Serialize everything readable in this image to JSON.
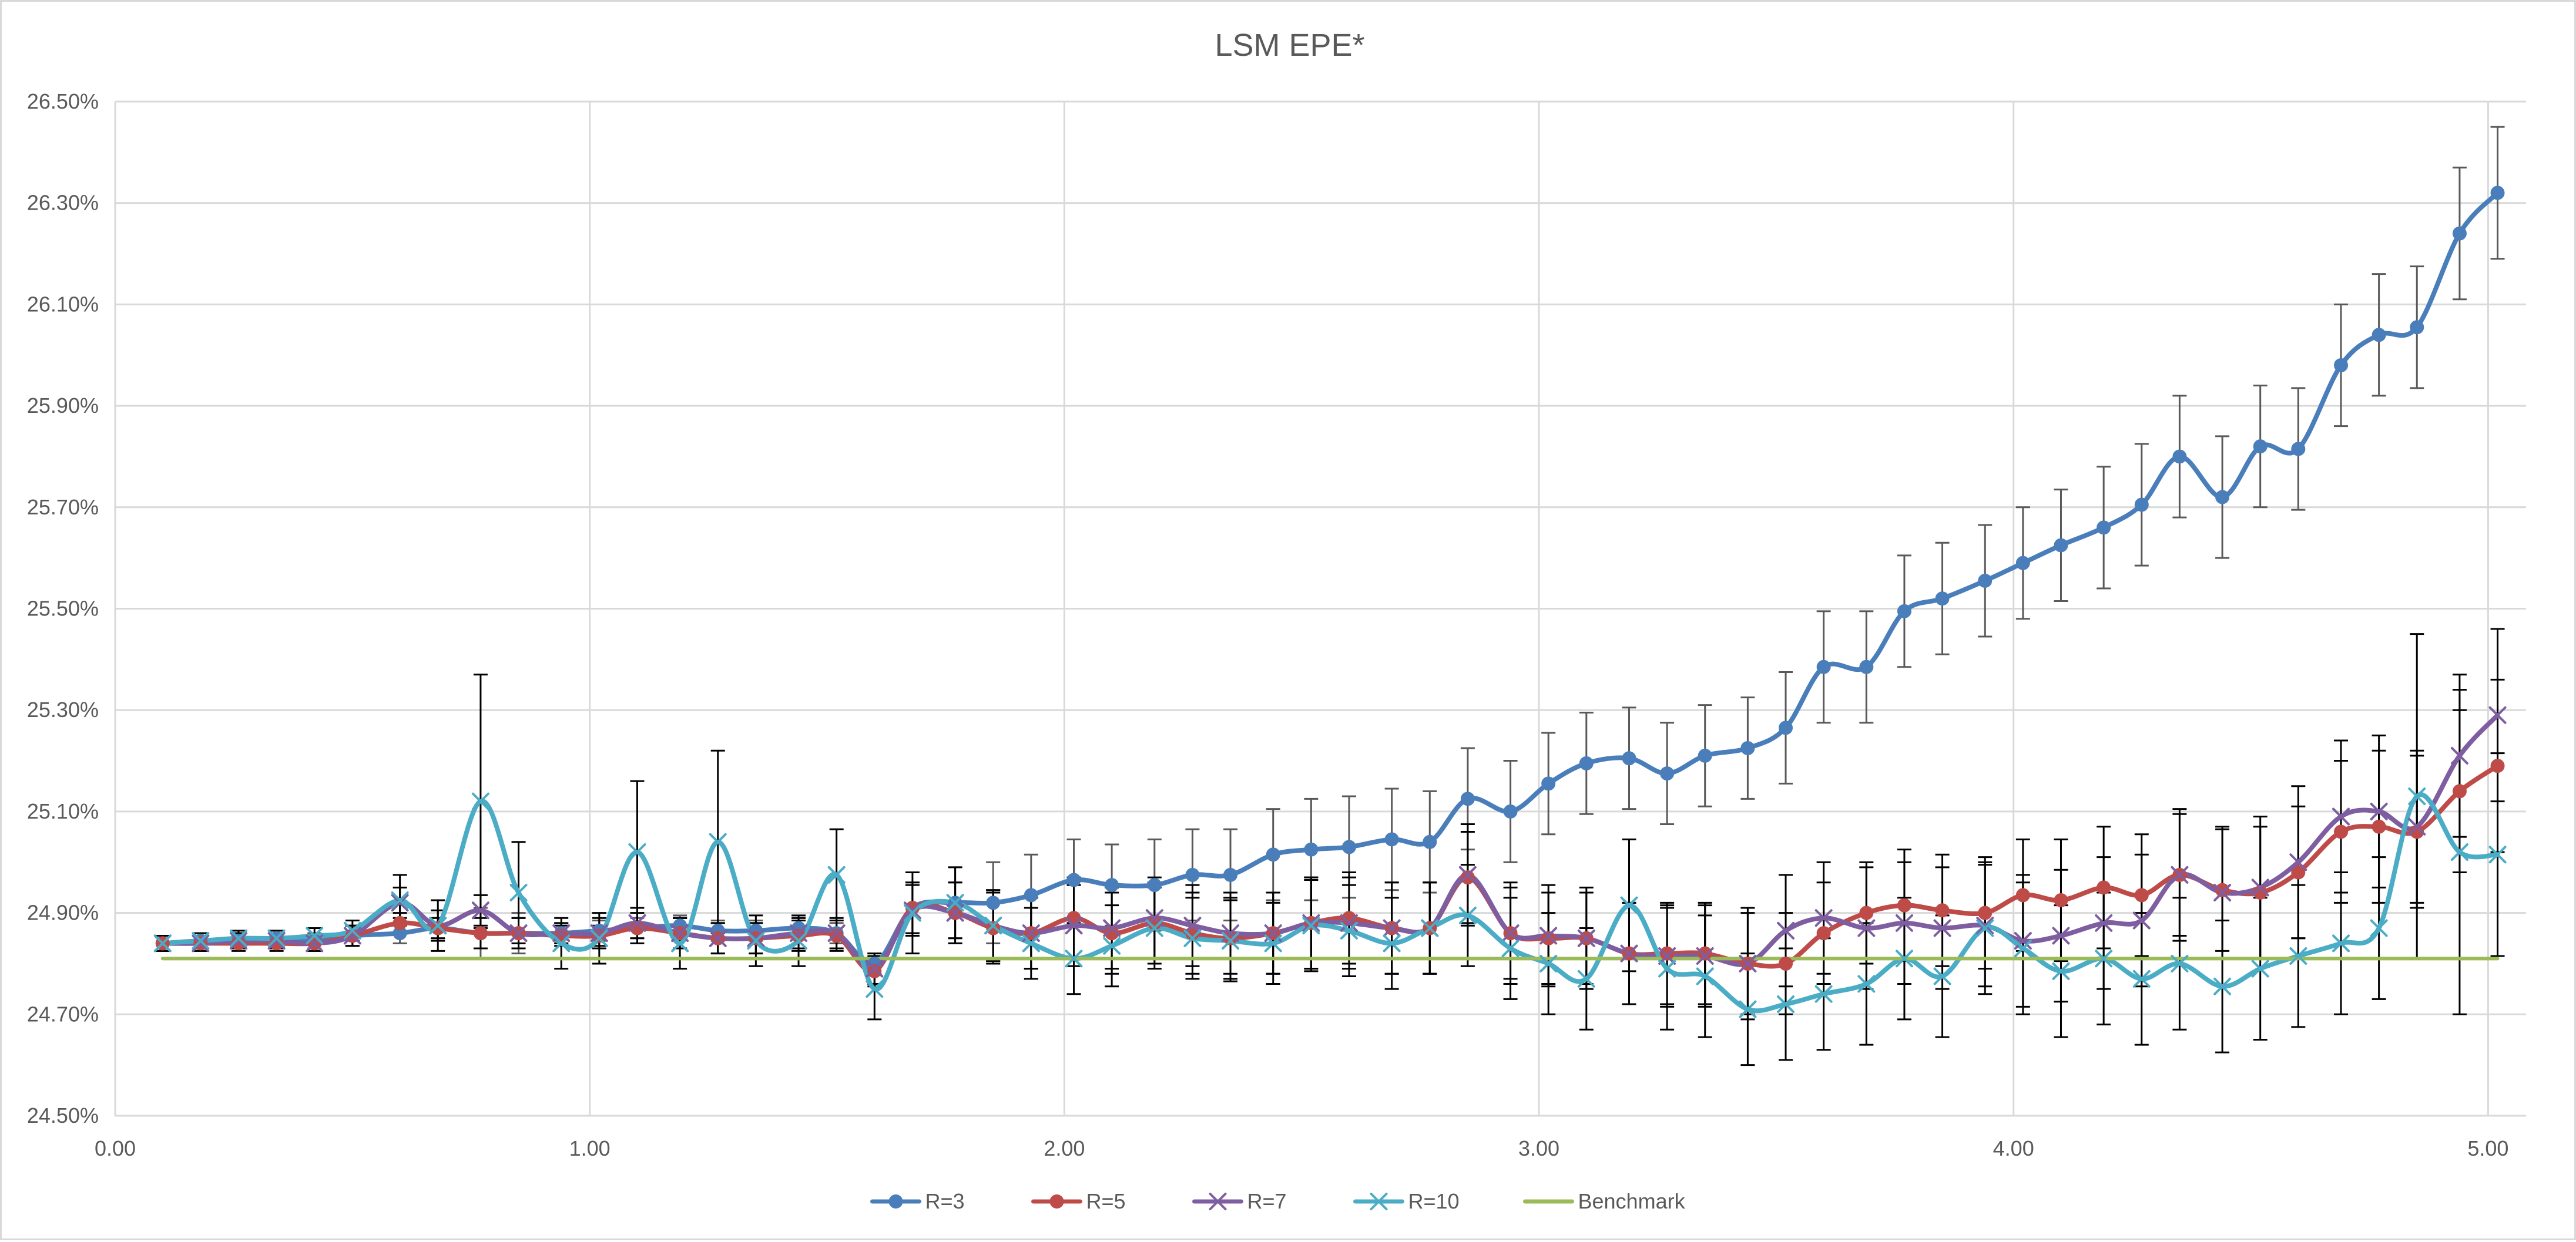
{
  "chart_data": {
    "type": "line",
    "title": "LSM EPE*",
    "xlabel": "",
    "ylabel": "",
    "x_ticks": [
      "0.00",
      "1.00",
      "2.00",
      "3.00",
      "4.00",
      "5.00"
    ],
    "y_ticks": [
      "24.50%",
      "24.70%",
      "24.90%",
      "25.10%",
      "25.30%",
      "25.50%",
      "25.70%",
      "25.90%",
      "26.10%",
      "26.30%",
      "26.50%"
    ],
    "xlim": [
      0,
      5.08
    ],
    "ylim": [
      24.5,
      26.5
    ],
    "grid": true,
    "legend_position": "bottom",
    "smooth_lines": true,
    "x": [
      0.1,
      0.18,
      0.26,
      0.34,
      0.42,
      0.5,
      0.6,
      0.68,
      0.77,
      0.85,
      0.94,
      1.02,
      1.1,
      1.19,
      1.27,
      1.35,
      1.44,
      1.52,
      1.6,
      1.68,
      1.77,
      1.85,
      1.93,
      2.02,
      2.1,
      2.19,
      2.27,
      2.35,
      2.44,
      2.52,
      2.6,
      2.69,
      2.77,
      2.85,
      2.94,
      3.02,
      3.1,
      3.19,
      3.27,
      3.35,
      3.44,
      3.52,
      3.6,
      3.69,
      3.77,
      3.85,
      3.94,
      4.02,
      4.1,
      4.19,
      4.27,
      4.35,
      4.44,
      4.52,
      4.6,
      4.69,
      4.77,
      4.85,
      4.94,
      5.02
    ],
    "series": [
      {
        "name": "R=3",
        "color": "#4a7ebb",
        "marker": "circle",
        "values": [
          24.84,
          24.845,
          24.845,
          24.85,
          24.845,
          24.855,
          24.86,
          24.87,
          24.86,
          24.86,
          24.86,
          24.865,
          24.87,
          24.875,
          24.865,
          24.865,
          24.87,
          24.86,
          24.8,
          24.91,
          24.92,
          24.92,
          24.935,
          24.965,
          24.955,
          24.955,
          24.975,
          24.975,
          25.015,
          25.025,
          25.03,
          25.045,
          25.04,
          25.125,
          25.1,
          25.155,
          25.195,
          25.205,
          25.175,
          25.21,
          25.225,
          25.265,
          25.385,
          25.385,
          25.495,
          25.52,
          25.555,
          25.59,
          25.625,
          25.66,
          25.705,
          25.8,
          25.72,
          25.82,
          25.815,
          25.98,
          26.04,
          26.055,
          26.24,
          26.32
        ],
        "error": [
          0.015,
          0.015,
          0.015,
          0.015,
          0.015,
          0.02,
          0.02,
          0.02,
          0.05,
          0.04,
          0.02,
          0.02,
          0.02,
          0.02,
          0.02,
          0.02,
          0.02,
          0.02,
          0.02,
          0.05,
          0.07,
          0.08,
          0.08,
          0.08,
          0.08,
          0.09,
          0.09,
          0.09,
          0.09,
          0.1,
          0.1,
          0.1,
          0.1,
          0.1,
          0.1,
          0.1,
          0.1,
          0.1,
          0.1,
          0.1,
          0.1,
          0.11,
          0.11,
          0.11,
          0.11,
          0.11,
          0.11,
          0.11,
          0.11,
          0.12,
          0.12,
          0.12,
          0.12,
          0.12,
          0.12,
          0.12,
          0.12,
          0.12,
          0.13,
          0.13
        ]
      },
      {
        "name": "R=5",
        "color": "#be4b48",
        "marker": "circle",
        "values": [
          24.84,
          24.84,
          24.84,
          24.84,
          24.84,
          24.855,
          24.88,
          24.87,
          24.86,
          24.86,
          24.855,
          24.855,
          24.87,
          24.86,
          24.85,
          24.85,
          24.855,
          24.855,
          24.785,
          24.91,
          24.9,
          24.87,
          24.86,
          24.89,
          24.86,
          24.88,
          24.86,
          24.85,
          24.86,
          24.88,
          24.89,
          24.87,
          24.87,
          24.97,
          24.86,
          24.85,
          24.85,
          24.82,
          24.82,
          24.82,
          24.8,
          24.8,
          24.86,
          24.9,
          24.915,
          24.905,
          24.9,
          24.935,
          24.925,
          24.95,
          24.935,
          24.975,
          24.945,
          24.94,
          24.98,
          25.06,
          25.07,
          25.06,
          25.14,
          25.19
        ],
        "error": [
          0.015,
          0.015,
          0.015,
          0.015,
          0.015,
          0.02,
          0.02,
          0.02,
          0.03,
          0.03,
          0.02,
          0.02,
          0.03,
          0.03,
          0.03,
          0.03,
          0.03,
          0.03,
          0.03,
          0.05,
          0.06,
          0.07,
          0.07,
          0.08,
          0.08,
          0.08,
          0.08,
          0.08,
          0.08,
          0.09,
          0.09,
          0.09,
          0.09,
          0.09,
          0.09,
          0.09,
          0.09,
          0.1,
          0.1,
          0.1,
          0.1,
          0.1,
          0.1,
          0.1,
          0.11,
          0.11,
          0.11,
          0.11,
          0.12,
          0.12,
          0.12,
          0.12,
          0.12,
          0.13,
          0.13,
          0.14,
          0.15,
          0.15,
          0.16,
          0.17
        ]
      },
      {
        "name": "R=7",
        "color": "#7e5ea1",
        "marker": "x",
        "values": [
          24.84,
          24.84,
          24.845,
          24.845,
          24.84,
          24.855,
          24.92,
          24.875,
          24.905,
          24.86,
          24.86,
          24.86,
          24.88,
          24.86,
          24.85,
          24.85,
          24.86,
          24.86,
          24.79,
          24.905,
          24.9,
          24.875,
          24.86,
          24.875,
          24.87,
          24.89,
          24.875,
          24.86,
          24.86,
          24.88,
          24.88,
          24.87,
          24.87,
          24.975,
          24.86,
          24.855,
          24.85,
          24.82,
          24.815,
          24.815,
          24.8,
          24.865,
          24.89,
          24.87,
          24.88,
          24.87,
          24.875,
          24.845,
          24.855,
          24.88,
          24.885,
          24.975,
          24.94,
          24.95,
          25.0,
          25.09,
          25.1,
          25.07,
          25.21,
          25.29
        ],
        "error": [
          0.015,
          0.015,
          0.015,
          0.015,
          0.015,
          0.02,
          0.03,
          0.03,
          0.03,
          0.03,
          0.02,
          0.03,
          0.03,
          0.03,
          0.03,
          0.03,
          0.03,
          0.03,
          0.03,
          0.05,
          0.06,
          0.07,
          0.07,
          0.08,
          0.08,
          0.08,
          0.08,
          0.08,
          0.08,
          0.09,
          0.09,
          0.09,
          0.09,
          0.1,
          0.1,
          0.1,
          0.1,
          0.1,
          0.1,
          0.1,
          0.11,
          0.11,
          0.11,
          0.12,
          0.12,
          0.12,
          0.12,
          0.13,
          0.13,
          0.13,
          0.13,
          0.13,
          0.13,
          0.14,
          0.15,
          0.15,
          0.15,
          0.15,
          0.16,
          0.17
        ]
      },
      {
        "name": "R=10",
        "color": "#4bacc6",
        "marker": "x",
        "values": [
          24.84,
          24.845,
          24.85,
          24.85,
          24.855,
          24.865,
          24.925,
          24.875,
          25.12,
          24.94,
          24.84,
          24.85,
          25.02,
          24.84,
          25.04,
          24.845,
          24.845,
          24.975,
          24.75,
          24.9,
          24.92,
          24.875,
          24.84,
          24.81,
          24.835,
          24.87,
          24.85,
          24.845,
          24.84,
          24.875,
          24.865,
          24.84,
          24.87,
          24.895,
          24.83,
          24.8,
          24.77,
          24.915,
          24.79,
          24.775,
          24.71,
          24.72,
          24.74,
          24.76,
          24.81,
          24.775,
          24.87,
          24.83,
          24.785,
          24.81,
          24.77,
          24.8,
          24.755,
          24.79,
          24.815,
          24.84,
          24.87,
          25.13,
          25.02,
          25.015
        ],
        "error": [
          0.015,
          0.015,
          0.015,
          0.015,
          0.015,
          0.02,
          0.05,
          0.05,
          0.25,
          0.1,
          0.05,
          0.05,
          0.14,
          0.05,
          0.18,
          0.05,
          0.05,
          0.09,
          0.06,
          0.08,
          0.07,
          0.07,
          0.07,
          0.07,
          0.08,
          0.08,
          0.08,
          0.08,
          0.08,
          0.09,
          0.09,
          0.09,
          0.09,
          0.1,
          0.1,
          0.1,
          0.1,
          0.13,
          0.12,
          0.12,
          0.11,
          0.11,
          0.11,
          0.12,
          0.12,
          0.12,
          0.13,
          0.13,
          0.13,
          0.13,
          0.13,
          0.13,
          0.13,
          0.14,
          0.14,
          0.14,
          0.14,
          0.32,
          0.32,
          0.2
        ]
      },
      {
        "name": "Benchmark",
        "color": "#9bbb59",
        "marker": "none",
        "values": [
          24.81,
          24.81,
          24.81,
          24.81,
          24.81,
          24.81,
          24.81,
          24.81,
          24.81,
          24.81,
          24.81,
          24.81,
          24.81,
          24.81,
          24.81,
          24.81,
          24.81,
          24.81,
          24.81,
          24.81,
          24.81,
          24.81,
          24.81,
          24.81,
          24.81,
          24.81,
          24.81,
          24.81,
          24.81,
          24.81,
          24.81,
          24.81,
          24.81,
          24.81,
          24.81,
          24.81,
          24.81,
          24.81,
          24.81,
          24.81,
          24.81,
          24.81,
          24.81,
          24.81,
          24.81,
          24.81,
          24.81,
          24.81,
          24.81,
          24.81,
          24.81,
          24.81,
          24.81,
          24.81,
          24.81,
          24.81,
          24.81,
          24.81,
          24.81,
          24.81
        ]
      }
    ]
  },
  "colors": {
    "gridline": "#d9d9d9",
    "error_bar_r3": "#595959",
    "error_bar_other": "#000000"
  }
}
